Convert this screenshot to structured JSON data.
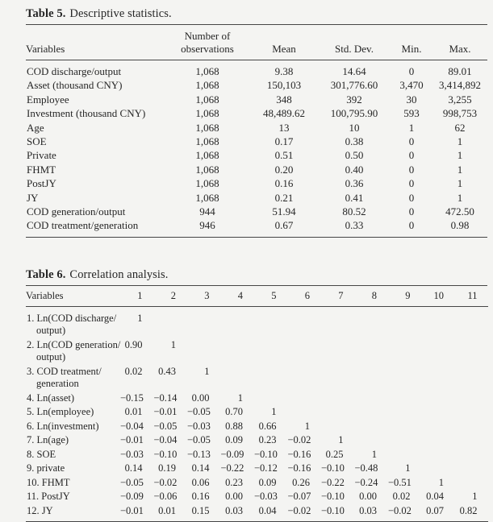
{
  "colors": {
    "background": "#f4f4f2",
    "text": "#262626",
    "rule": "#454545"
  },
  "table5": {
    "title": {
      "label": "Table 5.",
      "caption": "Descriptive statistics."
    },
    "columns": [
      "Variables",
      "Number of observations",
      "Mean",
      "Std. Dev.",
      "Min.",
      "Max."
    ],
    "rows": [
      [
        "COD discharge/output",
        "1,068",
        "9.38",
        "14.64",
        "0",
        "89.01"
      ],
      [
        "Asset (thousand CNY)",
        "1,068",
        "150,103",
        "301,776.60",
        "3,470",
        "3,414,892"
      ],
      [
        "Employee",
        "1,068",
        "348",
        "392",
        "30",
        "3,255"
      ],
      [
        "Investment (thousand CNY)",
        "1,068",
        "48,489.62",
        "100,795.90",
        "593",
        "998,753"
      ],
      [
        "Age",
        "1,068",
        "13",
        "10",
        "1",
        "62"
      ],
      [
        "SOE",
        "1,068",
        "0.17",
        "0.38",
        "0",
        "1"
      ],
      [
        "Private",
        "1,068",
        "0.51",
        "0.50",
        "0",
        "1"
      ],
      [
        "FHMT",
        "1,068",
        "0.20",
        "0.40",
        "0",
        "1"
      ],
      [
        "PostJY",
        "1,068",
        "0.16",
        "0.36",
        "0",
        "1"
      ],
      [
        "JY",
        "1,068",
        "0.21",
        "0.41",
        "0",
        "1"
      ],
      [
        "COD generation/output",
        "944",
        "51.94",
        "80.52",
        "0",
        "472.50"
      ],
      [
        "COD treatment/generation",
        "946",
        "0.67",
        "0.33",
        "0",
        "0.98"
      ]
    ]
  },
  "table6": {
    "title": {
      "label": "Table 6.",
      "caption": "Correlation analysis."
    },
    "columns": [
      "Variables",
      "1",
      "2",
      "3",
      "4",
      "5",
      "6",
      "7",
      "8",
      "9",
      "10",
      "11"
    ],
    "rows": [
      {
        "label_lines": [
          "1. Ln(COD discharge/",
          "output)"
        ],
        "values": [
          "1"
        ]
      },
      {
        "label_lines": [
          "2. Ln(COD generation/",
          "output)"
        ],
        "values": [
          "0.90",
          "1"
        ]
      },
      {
        "label_lines": [
          "3. COD treatment/",
          "generation"
        ],
        "values": [
          "0.02",
          "0.43",
          "1"
        ]
      },
      {
        "label_lines": [
          "4. Ln(asset)"
        ],
        "values": [
          "−0.15",
          "−0.14",
          "0.00",
          "1"
        ]
      },
      {
        "label_lines": [
          "5. Ln(employee)"
        ],
        "values": [
          "0.01",
          "−0.01",
          "−0.05",
          "0.70",
          "1"
        ]
      },
      {
        "label_lines": [
          "6. Ln(investment)"
        ],
        "values": [
          "−0.04",
          "−0.05",
          "−0.03",
          "0.88",
          "0.66",
          "1"
        ]
      },
      {
        "label_lines": [
          "7. Ln(age)"
        ],
        "values": [
          "−0.01",
          "−0.04",
          "−0.05",
          "0.09",
          "0.23",
          "−0.02",
          "1"
        ]
      },
      {
        "label_lines": [
          "8. SOE"
        ],
        "values": [
          "−0.03",
          "−0.10",
          "−0.13",
          "−0.09",
          "−0.10",
          "−0.16",
          "0.25",
          "1"
        ]
      },
      {
        "label_lines": [
          "9. private"
        ],
        "values": [
          "0.14",
          "0.19",
          "0.14",
          "−0.22",
          "−0.12",
          "−0.16",
          "−0.10",
          "−0.48",
          "1"
        ]
      },
      {
        "label_lines": [
          "10. FHMT"
        ],
        "values": [
          "−0.05",
          "−0.02",
          "0.06",
          "0.23",
          "0.09",
          "0.26",
          "−0.22",
          "−0.24",
          "−0.51",
          "1"
        ]
      },
      {
        "label_lines": [
          "11. PostJY"
        ],
        "values": [
          "−0.09",
          "−0.06",
          "0.16",
          "0.00",
          "−0.03",
          "−0.07",
          "−0.10",
          "0.00",
          "0.02",
          "0.04",
          "1"
        ]
      },
      {
        "label_lines": [
          "12. JY"
        ],
        "values": [
          "−0.01",
          "0.01",
          "0.15",
          "0.03",
          "0.04",
          "−0.02",
          "−0.10",
          "0.03",
          "−0.02",
          "0.07",
          "0.82"
        ]
      }
    ]
  }
}
